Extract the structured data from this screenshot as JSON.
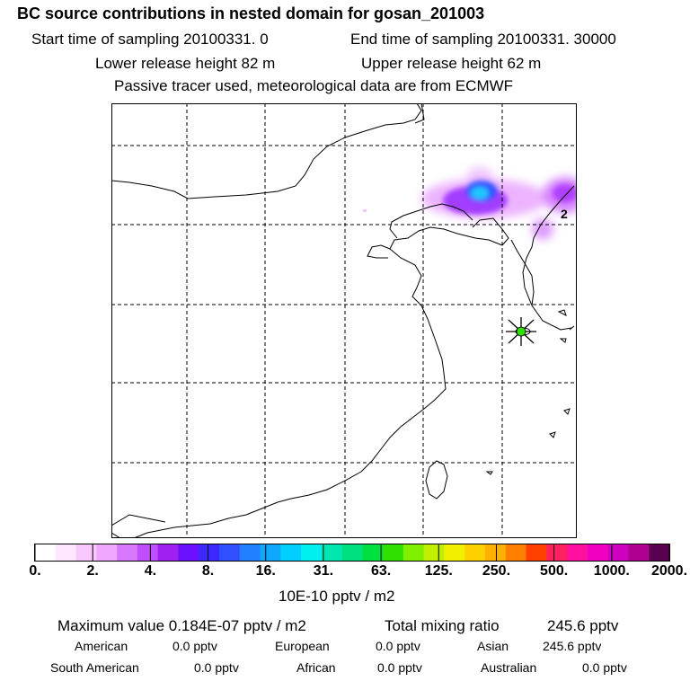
{
  "header": {
    "title": "BC  source contributions in nested domain for gosan_201003",
    "start_time": "Start time of sampling 20100331.     0",
    "end_time": "End time of sampling 20100331. 30000",
    "lower_release": "Lower release height   82 m",
    "upper_release": "Upper release height   62 m",
    "tracer_note": "Passive tracer used, meteorological data are from ECMWF"
  },
  "map": {
    "contour_label": "2",
    "receptor_marker": "star-receptor"
  },
  "colorbar": {
    "colors": [
      "#ffffff",
      "#ffe8ff",
      "#f8c8ff",
      "#f0a8ff",
      "#d878ff",
      "#c050ff",
      "#a020f0",
      "#6a10ff",
      "#3c28ff",
      "#3050ff",
      "#2080ff",
      "#10a8ff",
      "#00d0ff",
      "#00f0f0",
      "#00e8b0",
      "#00e080",
      "#00e040",
      "#30e000",
      "#80f000",
      "#c0f000",
      "#f0f000",
      "#ffd000",
      "#ffb000",
      "#ff8000",
      "#ff4000",
      "#ff2060",
      "#ff10a0",
      "#f000c0",
      "#d000c0",
      "#b00090",
      "#5a0050"
    ],
    "tick_labels": [
      "0.",
      "2.",
      "4.",
      "8.",
      "16.",
      "31.",
      "63.",
      "125.",
      "250.",
      "500.",
      "1000.",
      "2000."
    ],
    "units": "10E-10 pptv / m2"
  },
  "stats": {
    "maximum_value": "Maximum value  0.184E-07 pptv / m2",
    "total_mixing": "Total mixing ratio",
    "total_mixing_value": "245.6 pptv",
    "american_label": "American",
    "american_value": "0.0 pptv",
    "european_label": "European",
    "european_value": "0.0 pptv",
    "asian_label": "Asian",
    "asian_value": "245.6 pptv",
    "south_american_label": "South American",
    "south_american_value": "0.0 pptv",
    "african_label": "African",
    "african_value": "0.0 pptv",
    "australian_label": "Australian",
    "australian_value": "0.0 pptv"
  }
}
